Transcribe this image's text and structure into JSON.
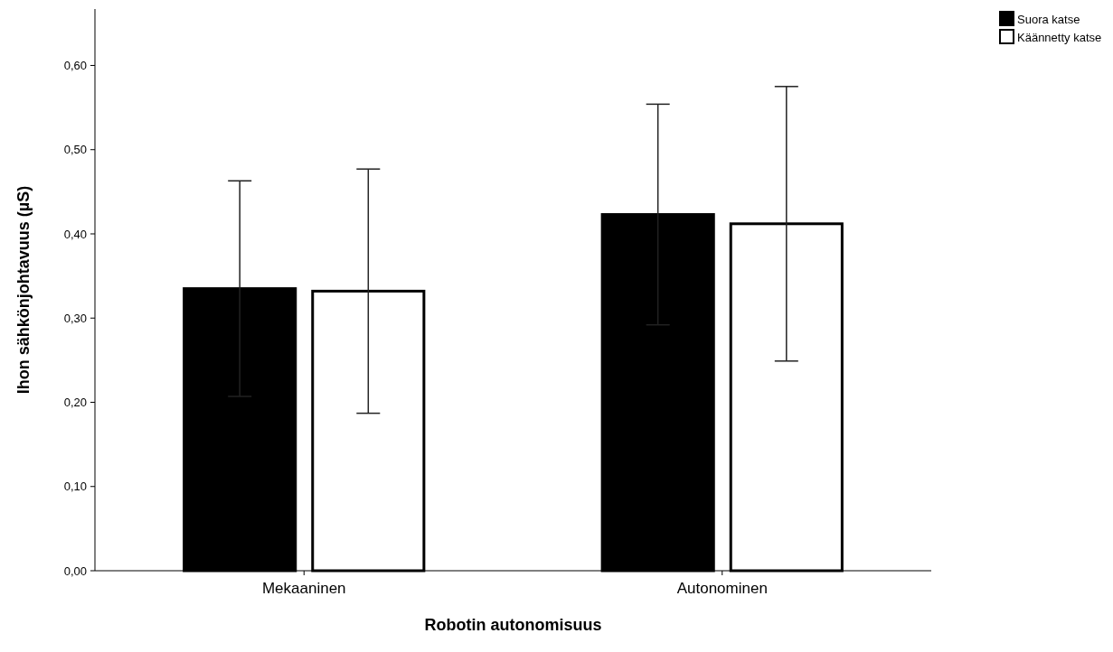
{
  "chart_data": {
    "type": "bar",
    "xlabel": "Robotin autonomisuus",
    "ylabel": "Ihon sähkönjohtavuus (µS)",
    "categories": [
      "Mekaaninen",
      "Autonominen"
    ],
    "series": [
      {
        "name": "Suora katse",
        "color": "#000000",
        "values": [
          0.335,
          0.423
        ],
        "errors": [
          0.128,
          0.131
        ]
      },
      {
        "name": "Käännetty katse",
        "color": "#ffffff",
        "values": [
          0.332,
          0.412
        ],
        "errors": [
          0.145,
          0.163
        ]
      }
    ],
    "ylim": [
      0,
      0.667
    ],
    "yticks": [
      {
        "value": 0,
        "label": "0,00"
      },
      {
        "value": 0.1,
        "label": "0,10"
      },
      {
        "value": 0.2,
        "label": "0,20"
      },
      {
        "value": 0.3,
        "label": "0,30"
      },
      {
        "value": 0.4,
        "label": "0,40"
      },
      {
        "value": 0.5,
        "label": "0,50"
      },
      {
        "value": 0.6,
        "label": "0,60"
      }
    ],
    "grid": false,
    "legend": "top right"
  }
}
